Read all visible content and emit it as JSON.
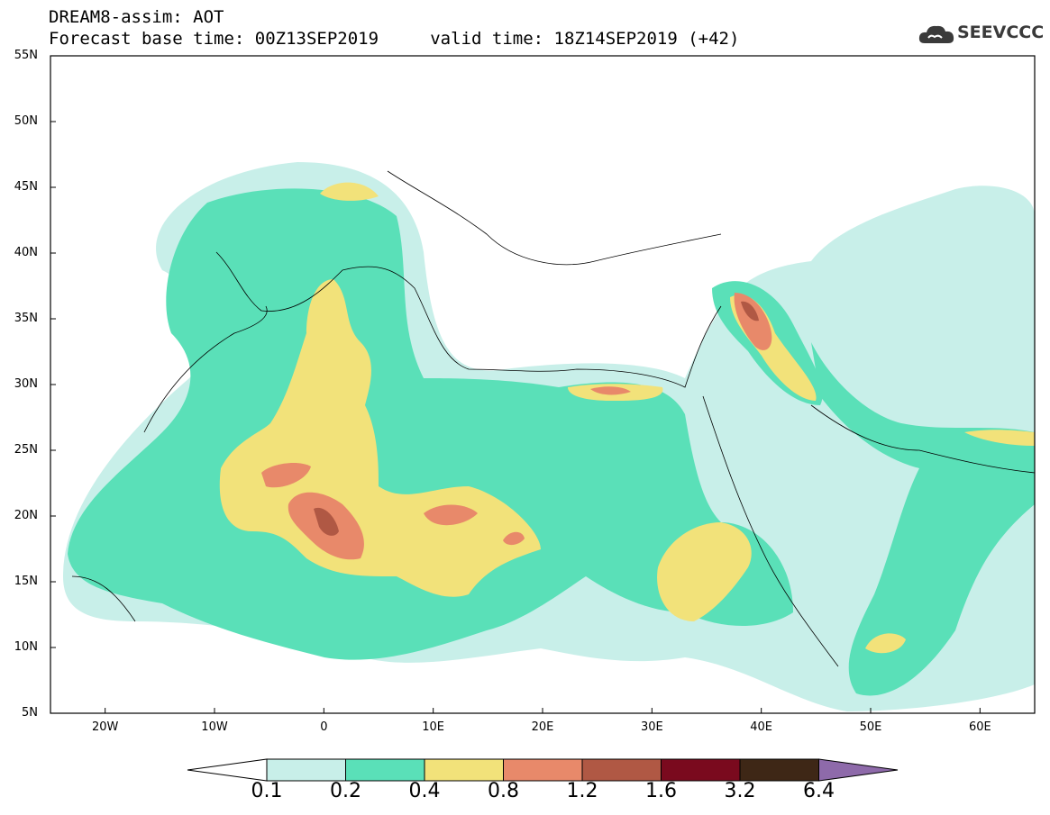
{
  "header": {
    "line1": "DREAM8-assim: AOT",
    "line2": "Forecast base time: 00Z13SEP2019     valid time: 18Z14SEP2019 (+42)"
  },
  "logo": {
    "text": "SEEVCCC",
    "icon": "cloud-icon",
    "color": "#3a3a3a"
  },
  "map": {
    "lat_labels": [
      "55N",
      "50N",
      "45N",
      "40N",
      "35N",
      "30N",
      "25N",
      "20N",
      "15N",
      "10N",
      "5N"
    ],
    "lon_labels": [
      "20W",
      "10W",
      "0",
      "10E",
      "20E",
      "30E",
      "40E",
      "50E",
      "60E"
    ],
    "lat_range": [
      5,
      55
    ],
    "lon_range": [
      -25,
      65
    ],
    "background": "#ffffff",
    "border_color": "#000000"
  },
  "colorbar": {
    "labels": [
      "0.1",
      "0.2",
      "0.4",
      "0.8",
      "1.2",
      "1.6",
      "3.2",
      "6.4"
    ],
    "colors": [
      "#ffffff",
      "#c8efe9",
      "#5ae0b8",
      "#f2e27a",
      "#e8896a",
      "#b05844",
      "#7a0a1e",
      "#3e2716",
      "#8e6aaa"
    ]
  }
}
